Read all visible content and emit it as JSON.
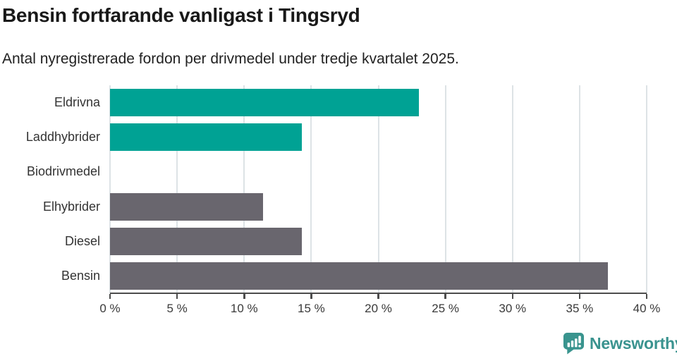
{
  "title": "Bensin fortfarande vanligast i Tingsryd",
  "subtitle": "Antal nyregistrerade fordon per drivmedel under tredje kvartalet 2025.",
  "colors": {
    "teal_bar": "#00a294",
    "gray_bar": "#69666e",
    "axis": "#4d4d4d",
    "gridline": "#dde3e6",
    "label_text": "#333333",
    "title_text": "#191919",
    "logo_teal": "#3a938f"
  },
  "chart_data": {
    "type": "bar",
    "orientation": "horizontal",
    "title": "Bensin fortfarande vanligast i Tingsryd",
    "subtitle": "Antal nyregistrerade fordon per drivmedel under tredje kvartalet 2025.",
    "categories": [
      "Eldrivna",
      "Laddhybrider",
      "Biodrivmedel",
      "Elhybrider",
      "Diesel",
      "Bensin"
    ],
    "values": [
      23.0,
      14.3,
      0,
      11.4,
      14.3,
      37.1
    ],
    "unit": "%",
    "bar_colors": [
      "#00a294",
      "#00a294",
      "#00a294",
      "#69666e",
      "#69666e",
      "#69666e"
    ],
    "xlabel": "",
    "ylabel": "",
    "xlim": [
      0,
      40
    ],
    "x_ticks": [
      {
        "value": 0,
        "label": "0 %"
      },
      {
        "value": 5,
        "label": "5 %"
      },
      {
        "value": 10,
        "label": "10 %"
      },
      {
        "value": 15,
        "label": "15 %"
      },
      {
        "value": 20,
        "label": "20 %"
      },
      {
        "value": 25,
        "label": "25 %"
      },
      {
        "value": 30,
        "label": "30 %"
      },
      {
        "value": 35,
        "label": "35 %"
      },
      {
        "value": 40,
        "label": "40 %"
      }
    ],
    "grid": "vertical",
    "legend": "none"
  },
  "logo": {
    "text": "Newsworthy",
    "icon": "newsworthy-speech-bubble-bar-chart-icon"
  }
}
